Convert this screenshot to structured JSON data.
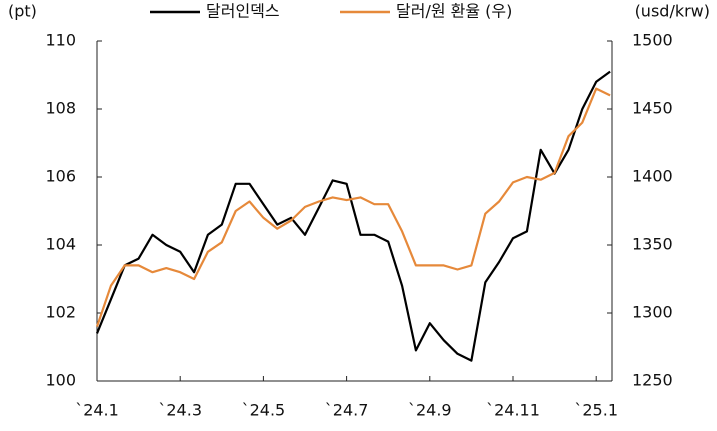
{
  "chart_data": {
    "type": "line",
    "y_label": "(pt)",
    "y2_label": "(usd/krw)",
    "categories": [
      "`24.1",
      null,
      null,
      null,
      null,
      null,
      "`24.3",
      null,
      null,
      null,
      null,
      null,
      "`24.5",
      null,
      null,
      null,
      null,
      null,
      "`24.7",
      null,
      null,
      null,
      null,
      null,
      "`24.9",
      null,
      null,
      null,
      null,
      null,
      "`24.11",
      null,
      null,
      null,
      null,
      null,
      "`25.1",
      null
    ],
    "series": [
      {
        "name": "달러인덱스",
        "color": "#000000",
        "axis": "y",
        "values": [
          101.4,
          102.4,
          103.4,
          103.6,
          104.3,
          104.0,
          103.8,
          103.2,
          104.3,
          104.6,
          105.8,
          105.8,
          105.2,
          104.6,
          104.8,
          104.3,
          105.1,
          105.9,
          105.8,
          104.3,
          104.3,
          104.1,
          102.8,
          100.9,
          101.7,
          101.2,
          100.8,
          100.6,
          102.9,
          103.5,
          104.2,
          104.4,
          106.8,
          106.1,
          106.8,
          108.0,
          108.8,
          109.1
        ]
      },
      {
        "name": "달러/원 환율 (우)",
        "color": "#e6893a",
        "axis": "y2",
        "values": [
          1290,
          1320,
          1335,
          1335,
          1330,
          1333,
          1330,
          1325,
          1345,
          1352,
          1375,
          1382,
          1370,
          1362,
          1368,
          1378,
          1382,
          1385,
          1383,
          1385,
          1380,
          1380,
          1360,
          1335,
          1335,
          1335,
          1332,
          1335,
          1373,
          1382,
          1396,
          1400,
          1398,
          1403,
          1430,
          1440,
          1465,
          1460
        ]
      }
    ],
    "ylim": [
      100,
      110
    ],
    "yticks": [
      100,
      102,
      104,
      106,
      108,
      110
    ],
    "y2lim": [
      1250,
      1500
    ],
    "y2ticks": [
      1250,
      1300,
      1350,
      1400,
      1450,
      1500
    ]
  }
}
